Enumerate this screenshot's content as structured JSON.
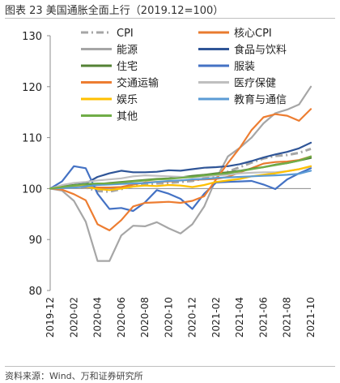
{
  "title": "图表 23 美国通胀全面上行（2019.12=100）",
  "source": "资料来源：Wind、万和证券研究所",
  "chart_data": {
    "type": "line",
    "x": [
      "2019-12",
      "2020-01",
      "2020-02",
      "2020-03",
      "2020-04",
      "2020-05",
      "2020-06",
      "2020-07",
      "2020-08",
      "2020-09",
      "2020-10",
      "2020-11",
      "2020-12",
      "2021-01",
      "2021-02",
      "2021-03",
      "2021-04",
      "2021-05",
      "2021-06",
      "2021-07",
      "2021-08",
      "2021-09",
      "2021-10"
    ],
    "xticks": [
      "2019-12",
      "2020-02",
      "2020-04",
      "2020-06",
      "2020-08",
      "2020-10",
      "2020-12",
      "2021-02",
      "2021-04",
      "2021-06",
      "2021-08",
      "2021-10"
    ],
    "ylim": [
      80,
      130
    ],
    "yticks": [
      80,
      90,
      100,
      110,
      120,
      130
    ],
    "legend_layout": "two-column, top",
    "series": [
      {
        "name": "CPI",
        "color": "#a6a6a6",
        "dash": "dashdot",
        "width": 3,
        "values": [
          100,
          100.3,
          100.5,
          100.2,
          99.5,
          99.4,
          99.9,
          100.5,
          100.8,
          101.0,
          101.1,
          101.3,
          101.5,
          102.0,
          102.6,
          103.3,
          104.2,
          105.1,
          105.9,
          106.4,
          106.6,
          107.0,
          107.8
        ]
      },
      {
        "name": "核心CPI",
        "color": "#e87b2f",
        "values": [
          100,
          100.3,
          100.4,
          100.3,
          100.2,
          100.2,
          100.3,
          100.8,
          101.2,
          101.3,
          101.4,
          101.6,
          101.7,
          101.8,
          101.9,
          102.3,
          103.2,
          104.0,
          104.9,
          105.2,
          105.3,
          105.6,
          106.3
        ]
      },
      {
        "name": "能源",
        "color": "#a6a6a6",
        "values": [
          100,
          99.6,
          97.6,
          93.5,
          85.8,
          85.8,
          90.8,
          92.7,
          92.6,
          93.4,
          92.2,
          91.2,
          93.0,
          96.5,
          101.9,
          106.3,
          108.0,
          110.0,
          112.8,
          114.8,
          115.5,
          116.5,
          120.0
        ]
      },
      {
        "name": "食品与饮料",
        "color": "#2f5597",
        "values": [
          100,
          100.4,
          100.7,
          101.0,
          102.3,
          103.0,
          103.5,
          103.2,
          103.2,
          103.3,
          103.6,
          103.5,
          103.8,
          104.1,
          104.2,
          104.4,
          104.8,
          105.4,
          106.1,
          106.7,
          107.2,
          107.9,
          109.0
        ]
      },
      {
        "name": "住宅",
        "color": "#548235",
        "values": [
          100,
          100.4,
          100.7,
          100.8,
          100.9,
          101.1,
          101.3,
          101.5,
          101.7,
          101.9,
          102.0,
          102.2,
          102.5,
          102.7,
          103.0,
          103.2,
          103.5,
          103.9,
          104.2,
          104.7,
          105.0,
          105.5,
          106.0
        ]
      },
      {
        "name": "服装",
        "color": "#4472c4",
        "values": [
          100,
          101.4,
          104.4,
          104.0,
          99.0,
          96.0,
          96.2,
          95.6,
          97.3,
          99.7,
          99.0,
          98.0,
          96.0,
          99.0,
          101.2,
          101.3,
          101.4,
          101.5,
          100.8,
          99.9,
          101.8,
          103.0,
          104.0
        ]
      },
      {
        "name": "交通运输",
        "color": "#ed7d31",
        "values": [
          100,
          99.8,
          98.9,
          97.7,
          93.0,
          91.8,
          93.8,
          96.5,
          97.2,
          97.3,
          97.4,
          97.2,
          97.6,
          98.5,
          101.8,
          105.0,
          108.0,
          111.5,
          114.0,
          114.6,
          114.3,
          113.3,
          115.6
        ]
      },
      {
        "name": "医疗保健",
        "color": "#bfbfbf",
        "values": [
          100,
          100.7,
          101.1,
          101.3,
          101.6,
          101.8,
          102.0,
          102.4,
          102.6,
          102.5,
          102.4,
          102.3,
          102.2,
          102.4,
          102.6,
          102.7,
          103.0,
          103.1,
          103.2,
          103.2,
          103.4,
          103.8,
          104.3
        ]
      },
      {
        "name": "娱乐",
        "color": "#ffc000",
        "values": [
          100,
          100.3,
          100.5,
          100.4,
          99.9,
          99.7,
          100.0,
          100.4,
          100.6,
          100.5,
          100.7,
          100.6,
          100.3,
          100.7,
          101.3,
          101.6,
          101.9,
          102.4,
          102.7,
          103.0,
          103.4,
          103.8,
          104.4
        ]
      },
      {
        "name": "教育与通信",
        "color": "#5b9bd5",
        "values": [
          100,
          100.1,
          100.2,
          100.4,
          100.7,
          100.8,
          100.9,
          101.0,
          101.1,
          101.3,
          101.5,
          101.6,
          101.8,
          101.9,
          102.1,
          102.2,
          102.3,
          102.4,
          102.5,
          102.6,
          102.7,
          102.9,
          103.5
        ]
      },
      {
        "name": "其他",
        "color": "#70ad47",
        "values": [
          100,
          100.3,
          100.6,
          100.9,
          101.0,
          101.0,
          101.2,
          101.4,
          101.6,
          101.8,
          101.9,
          102.1,
          102.3,
          102.6,
          102.8,
          103.0,
          103.4,
          103.8,
          104.2,
          104.6,
          105.0,
          105.5,
          106.3
        ]
      }
    ]
  }
}
